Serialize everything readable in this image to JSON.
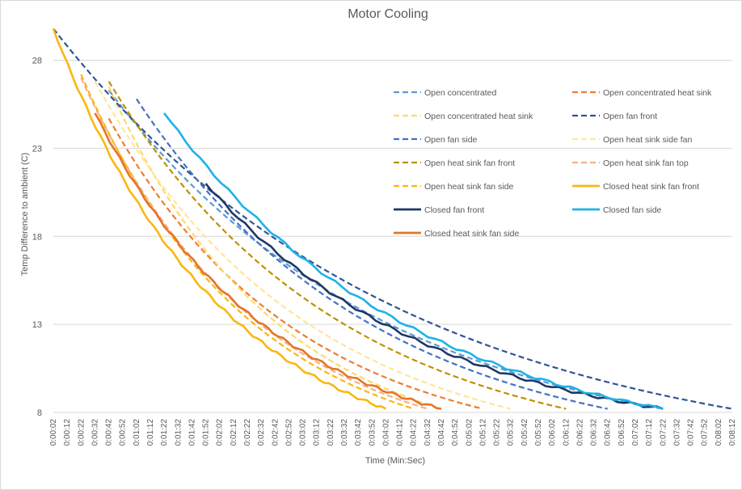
{
  "chart_data": {
    "type": "line",
    "title": "Motor Cooling",
    "xlabel": "Time (Min:Sec)",
    "ylabel": "Temp Difference to ambient (C)",
    "ylim": [
      8,
      30
    ],
    "yticks": [
      8,
      13,
      18,
      23,
      28
    ],
    "xlim_seconds": [
      2,
      492
    ],
    "x_tick_labels": [
      "0:00:02",
      "0:00:12",
      "0:00:22",
      "0:00:32",
      "0:00:42",
      "0:00:52",
      "0:01:02",
      "0:01:12",
      "0:01:22",
      "0:01:32",
      "0:01:42",
      "0:01:52",
      "0:02:02",
      "0:02:12",
      "0:02:22",
      "0:02:32",
      "0:02:42",
      "0:02:52",
      "0:03:02",
      "0:03:12",
      "0:03:22",
      "0:03:32",
      "0:03:42",
      "0:03:52",
      "0:04:02",
      "0:04:12",
      "0:04:22",
      "0:04:32",
      "0:04:42",
      "0:04:52",
      "0:05:02",
      "0:05:12",
      "0:05:22",
      "0:05:32",
      "0:05:42",
      "0:05:52",
      "0:06:02",
      "0:06:12",
      "0:06:22",
      "0:06:32",
      "0:06:42",
      "0:06:52",
      "0:07:02",
      "0:07:12",
      "0:07:22",
      "0:07:32",
      "0:07:42",
      "0:07:52",
      "0:08:02",
      "0:08:12"
    ],
    "grid": "horizontal",
    "legend_position": "top-right",
    "series": [
      {
        "name": "Open concentrated",
        "color": "#5b9bd5",
        "dash": true,
        "start": [
          "0:00:42",
          26.3
        ],
        "end": [
          "0:07:22",
          8.2
        ]
      },
      {
        "name": "Open concentrated heat sink",
        "color": "#ed7d31",
        "dash": true,
        "start": [
          "0:00:42",
          24.7
        ],
        "end": [
          "0:05:12",
          8.2
        ]
      },
      {
        "name": "Open concentrated heat sink",
        "color": "#ffd966",
        "dash": true,
        "start": [
          "0:00:42",
          26.5
        ],
        "end": [
          "0:04:42",
          8.2
        ]
      },
      {
        "name": "Open fan front",
        "color": "#2f5597",
        "dash": true,
        "start": [
          "0:00:02",
          29.8
        ],
        "end": [
          "0:08:12",
          8.2
        ]
      },
      {
        "name": "Open fan side",
        "color": "#4472c4",
        "dash": true,
        "start": [
          "0:01:02",
          25.8
        ],
        "end": [
          "0:06:42",
          8.2
        ]
      },
      {
        "name": "Open heat sink side fan",
        "color": "#ffe699",
        "dash": true,
        "start": [
          "0:00:32",
          26.8
        ],
        "end": [
          "0:05:32",
          8.2
        ]
      },
      {
        "name": "Open heat sink fan front",
        "color": "#bf9000",
        "dash": true,
        "start": [
          "0:00:42",
          26.8
        ],
        "end": [
          "0:06:12",
          8.2
        ]
      },
      {
        "name": "Open heat sink fan top",
        "color": "#f4b183",
        "dash": true,
        "start": [
          "0:00:22",
          27.0
        ],
        "end": [
          "0:04:32",
          8.2
        ]
      },
      {
        "name": "Open heat sink fan side",
        "color": "#f9b70f",
        "dash": true,
        "start": [
          "0:00:22",
          27.2
        ],
        "end": [
          "0:04:22",
          8.2
        ]
      },
      {
        "name": "Closed heat sink fan front",
        "color": "#f9b70f",
        "dash": false,
        "start": [
          "0:00:02",
          29.8
        ],
        "end": [
          "0:04:02",
          8.2
        ]
      },
      {
        "name": "Closed fan front",
        "color": "#1f3864",
        "dash": false,
        "start": [
          "0:01:52",
          21.0
        ],
        "end": [
          "0:07:22",
          8.2
        ]
      },
      {
        "name": "Closed fan side",
        "color": "#1cb2e8",
        "dash": false,
        "start": [
          "0:01:22",
          25.0
        ],
        "end": [
          "0:07:22",
          8.2
        ]
      },
      {
        "name": "Closed heat sink fan side",
        "color": "#e3762b",
        "dash": false,
        "start": [
          "0:00:32",
          25.0
        ],
        "end": [
          "0:04:42",
          8.2
        ]
      }
    ],
    "legend": [
      {
        "label": "Open concentrated",
        "color": "#5b9bd5",
        "dash": true
      },
      {
        "label": "Open concentrated heat sink",
        "color": "#ed7d31",
        "dash": true
      },
      {
        "label": "Open concentrated heat sink",
        "color": "#ffd966",
        "dash": true
      },
      {
        "label": "Open fan front",
        "color": "#2f5597",
        "dash": true
      },
      {
        "label": "Open fan side",
        "color": "#4472c4",
        "dash": true
      },
      {
        "label": "Open heat sink side fan",
        "color": "#ffe699",
        "dash": true
      },
      {
        "label": "Open heat sink fan front",
        "color": "#bf9000",
        "dash": true
      },
      {
        "label": "Open heat sink fan top",
        "color": "#f4b183",
        "dash": true
      },
      {
        "label": "Open heat sink fan side",
        "color": "#f9b70f",
        "dash": true
      },
      {
        "label": "Closed heat sink fan front",
        "color": "#f9b70f",
        "dash": false
      },
      {
        "label": "Closed fan front",
        "color": "#1f3864",
        "dash": false
      },
      {
        "label": "Closed fan side",
        "color": "#1cb2e8",
        "dash": false
      },
      {
        "label": "Closed heat sink fan side",
        "color": "#e3762b",
        "dash": false
      }
    ]
  }
}
